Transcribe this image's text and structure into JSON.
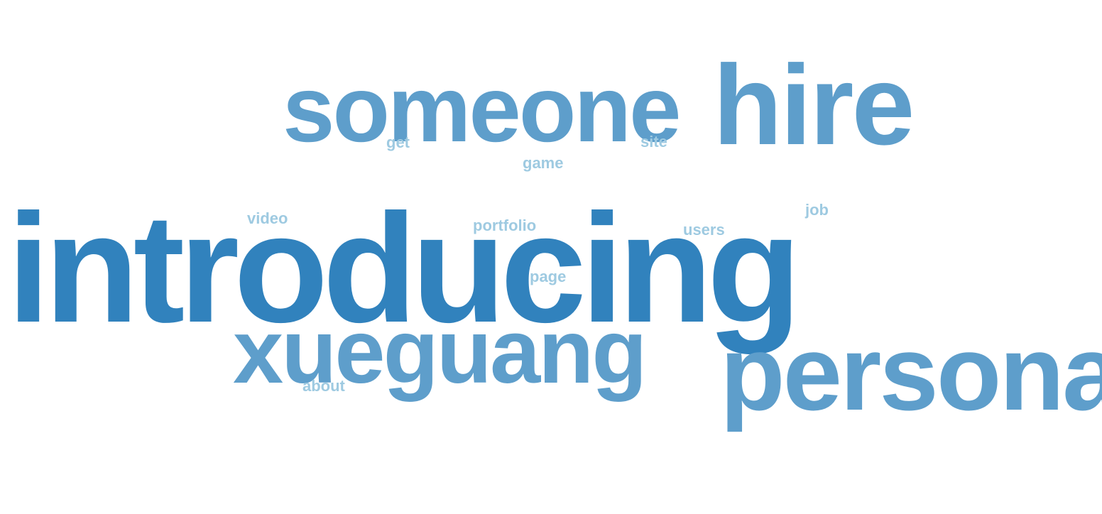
{
  "word_cloud": {
    "colors": {
      "large": "#3182bd",
      "medium": "#5e9ecb",
      "small": "#9ecae1",
      "background": "#ffffff"
    },
    "words": {
      "introducing": "introducing",
      "someone": "someone",
      "hire": "hire",
      "xueguang": "xueguang",
      "personal": "personal",
      "get": "get",
      "site": "site",
      "game": "game",
      "video": "video",
      "portfolio": "portfolio",
      "users": "users",
      "job": "job",
      "page": "page",
      "about": "about"
    }
  }
}
